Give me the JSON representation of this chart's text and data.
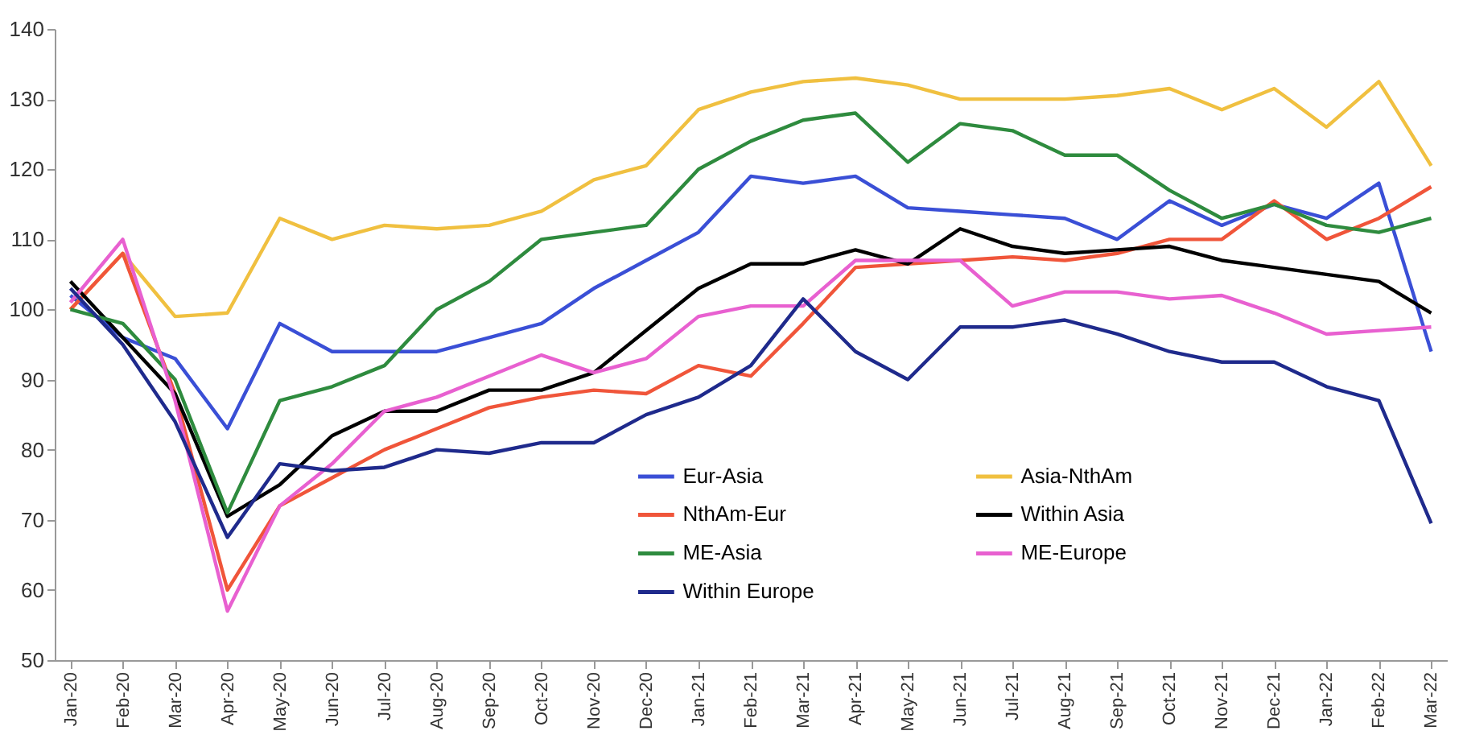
{
  "chart_data": {
    "type": "line",
    "categories": [
      "Jan-20",
      "Feb-20",
      "Mar-20",
      "Apr-20",
      "May-20",
      "Jun-20",
      "Jul-20",
      "Aug-20",
      "Sep-20",
      "Oct-20",
      "Nov-20",
      "Dec-20",
      "Jan-21",
      "Feb-21",
      "Mar-21",
      "Apr-21",
      "May-21",
      "Jun-21",
      "Jul-21",
      "Aug-21",
      "Sep-21",
      "Oct-21",
      "Nov-21",
      "Dec-21",
      "Jan-22",
      "Feb-22",
      "Mar-22"
    ],
    "series": [
      {
        "name": "Eur-Asia",
        "color": "#3a4fd6",
        "values": [
          102,
          96,
          93,
          83,
          98,
          94,
          94,
          94,
          96,
          98,
          103,
          107,
          111,
          119,
          118,
          119,
          114.5,
          114,
          113.5,
          113,
          110,
          115.5,
          112,
          115,
          113,
          118,
          94
        ]
      },
      {
        "name": "Asia-NthAm",
        "color": "#f0c040",
        "values": [
          100,
          108,
          99,
          99.5,
          113,
          110,
          112,
          111.5,
          112,
          114,
          118.5,
          120.5,
          128.5,
          131,
          132.5,
          133,
          132,
          130,
          130,
          130,
          130.5,
          131.5,
          128.5,
          131.5,
          126,
          132.5,
          120.5
        ]
      },
      {
        "name": "NthAm-Eur",
        "color": "#f0553a",
        "values": [
          100,
          108,
          88,
          60,
          72,
          76,
          80,
          83,
          86,
          87.5,
          88.5,
          88,
          92,
          90.5,
          98,
          106,
          106.5,
          107,
          107.5,
          107,
          108,
          110,
          110,
          115.5,
          110,
          113,
          117.5
        ]
      },
      {
        "name": "Within Asia",
        "color": "#000000",
        "values": [
          104,
          96,
          88,
          70.5,
          75,
          82,
          85.5,
          85.5,
          88.5,
          88.5,
          91,
          97,
          103,
          106.5,
          106.5,
          108.5,
          106.5,
          111.5,
          109,
          108,
          108.5,
          109,
          107,
          106,
          105,
          104,
          99.5
        ]
      },
      {
        "name": "ME-Asia",
        "color": "#2e8b3e",
        "values": [
          100,
          98,
          90,
          71,
          87,
          89,
          92,
          100,
          104,
          110,
          111,
          112,
          120,
          124,
          127,
          128,
          121,
          126.5,
          125.5,
          122,
          122,
          117,
          113,
          115,
          112,
          111,
          113
        ]
      },
      {
        "name": "ME-Europe",
        "color": "#e860d0",
        "values": [
          101,
          110,
          87,
          57,
          72,
          78,
          85.5,
          87.5,
          90.5,
          93.5,
          91,
          93,
          99,
          100.5,
          100.5,
          107,
          107,
          107,
          100.5,
          102.5,
          102.5,
          101.5,
          102,
          99.5,
          96.5,
          97,
          97.5
        ]
      },
      {
        "name": "Within Europe",
        "color": "#1f2a8c",
        "values": [
          103,
          95,
          84,
          67.5,
          78,
          77,
          77.5,
          80,
          79.5,
          81,
          81,
          85,
          87.5,
          92,
          101.5,
          94,
          90,
          97.5,
          97.5,
          98.5,
          96.5,
          94,
          92.5,
          92.5,
          89,
          87,
          69.5
        ]
      }
    ],
    "ylim": [
      50,
      140
    ],
    "yticks": [
      50,
      60,
      70,
      80,
      90,
      100,
      110,
      120,
      130,
      140
    ],
    "grid": false,
    "legend": "bottom right",
    "marker": "none",
    "line_style": "solid"
  }
}
